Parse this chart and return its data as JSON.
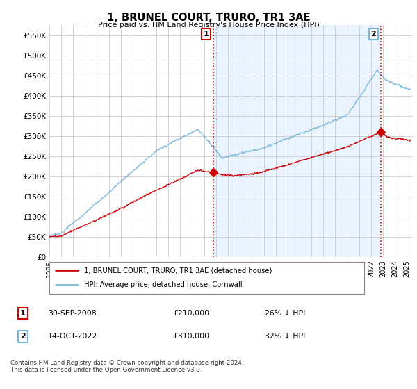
{
  "title": "1, BRUNEL COURT, TRURO, TR1 3AE",
  "subtitle": "Price paid vs. HM Land Registry's House Price Index (HPI)",
  "legend_line1": "1, BRUNEL COURT, TRURO, TR1 3AE (detached house)",
  "legend_line2": "HPI: Average price, detached house, Cornwall",
  "annotation1_label": "1",
  "annotation1_date": "30-SEP-2008",
  "annotation1_price": "£210,000",
  "annotation1_hpi": "26% ↓ HPI",
  "annotation2_label": "2",
  "annotation2_date": "14-OCT-2022",
  "annotation2_price": "£310,000",
  "annotation2_hpi": "32% ↓ HPI",
  "copyright": "Contains HM Land Registry data © Crown copyright and database right 2024.\nThis data is licensed under the Open Government Licence v3.0.",
  "hpi_color": "#7ab8d9",
  "price_color": "#cc0000",
  "marker_color_1": "#cc0000",
  "marker_color_2": "#cc0000",
  "bg_color": "#ffffff",
  "grid_color": "#cccccc",
  "shade_color": "#ddeeff",
  "dashed_line_color": "#cc0000",
  "ylim": [
    0,
    575000
  ],
  "yticks": [
    0,
    50000,
    100000,
    150000,
    200000,
    250000,
    300000,
    350000,
    400000,
    450000,
    500000,
    550000
  ],
  "xlim_start": 1995.0,
  "xlim_end": 2025.5,
  "sale1_x": 2008.75,
  "sale1_y": 210000,
  "sale2_x": 2022.79,
  "sale2_y": 310000
}
